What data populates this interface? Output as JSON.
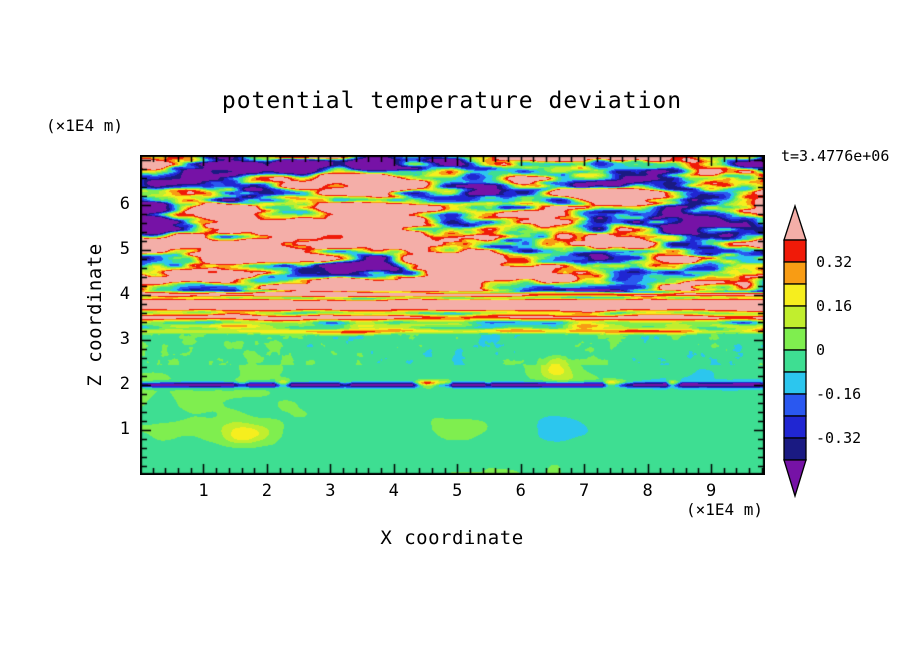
{
  "chart_data": {
    "type": "heatmap",
    "title": "potential temperature deviation",
    "time_label": "t=3.4776e+06",
    "xlabel": "X coordinate",
    "ylabel": "Z coordinate",
    "x_unit": "(×1E4 m)",
    "z_unit": "(×1E4 m)",
    "x_range": [
      0,
      9.85
    ],
    "z_range": [
      0,
      7.11
    ],
    "x_tick_labels": [
      1,
      2,
      3,
      4,
      5,
      6,
      7,
      8,
      9
    ],
    "z_tick_labels": [
      1,
      2,
      3,
      4,
      5,
      6
    ],
    "minor_tick_step": 0.2,
    "legend_position": "right",
    "levels": [
      -0.4,
      -0.32,
      -0.24,
      -0.16,
      -0.08,
      0,
      0.08,
      0.16,
      0.24,
      0.32,
      0.4
    ],
    "level_colors": [
      "#7612a6",
      "#1a1a82",
      "#2026d2",
      "#2a58f0",
      "#2cc6ee",
      "#3ede92",
      "#7fee4f",
      "#c1ee2e",
      "#f6ee1e",
      "#f89c14",
      "#f01a08",
      "#f4aea8"
    ],
    "colorbar_labels": [
      "0.32",
      "0.16",
      "0",
      "-0.16",
      "-0.32"
    ],
    "field_model": {
      "description": "x-z cross-section: strong alternating +/-0.4 layered deviations aloft (z>4), a warm band cut by thin cold horizontal stripes near z=3.2-4.1, weak (-0.1..+0.1) green blob field below z=3.2 with fine speckle near z=3, and a sharp cold line with warm specks at z=2",
      "seed": 7,
      "sharpen": 2.4,
      "top": {
        "mean": 0.07,
        "amplitude": 0.72,
        "scale_x": 0.8,
        "scale_z": 2.9
      },
      "top_bias": {
        "z": 4.25,
        "amp": 0.3,
        "width": 0.18
      },
      "band": {
        "mean": 0.47,
        "wobble": 0.12
      },
      "stripes": [
        {
          "z": 3.26,
          "depth": 0.56,
          "width": 0.05,
          "overlay": false
        },
        {
          "z": 3.39,
          "depth": 0.78,
          "width": 0.05,
          "overlay": false
        },
        {
          "z": 3.6,
          "depth": 0.58,
          "width": 0.042,
          "overlay": false
        },
        {
          "z": 3.94,
          "depth": 0.56,
          "width": 0.028,
          "overlay": true
        },
        {
          "z": 4.08,
          "depth": 0.46,
          "width": 0.022,
          "overlay": true
        }
      ],
      "low": {
        "mean": -0.03,
        "amplitude": 0.075,
        "scale_x": 0.6,
        "scale_z": 0.9,
        "fine_amp": 0.07,
        "fine_zmin": 2.45,
        "fine_zmax": 3.2,
        "spot_amp": 0.5,
        "spot_thresh": 0.55
      },
      "line": {
        "z": 2.0,
        "depth": 0.45,
        "width": 0.04,
        "speck_amp": 1.5,
        "speck_thresh": 0.38
      },
      "blend_low_band": [
        3.1,
        3.24
      ],
      "blend_band_top": [
        3.98,
        4.16
      ]
    }
  }
}
